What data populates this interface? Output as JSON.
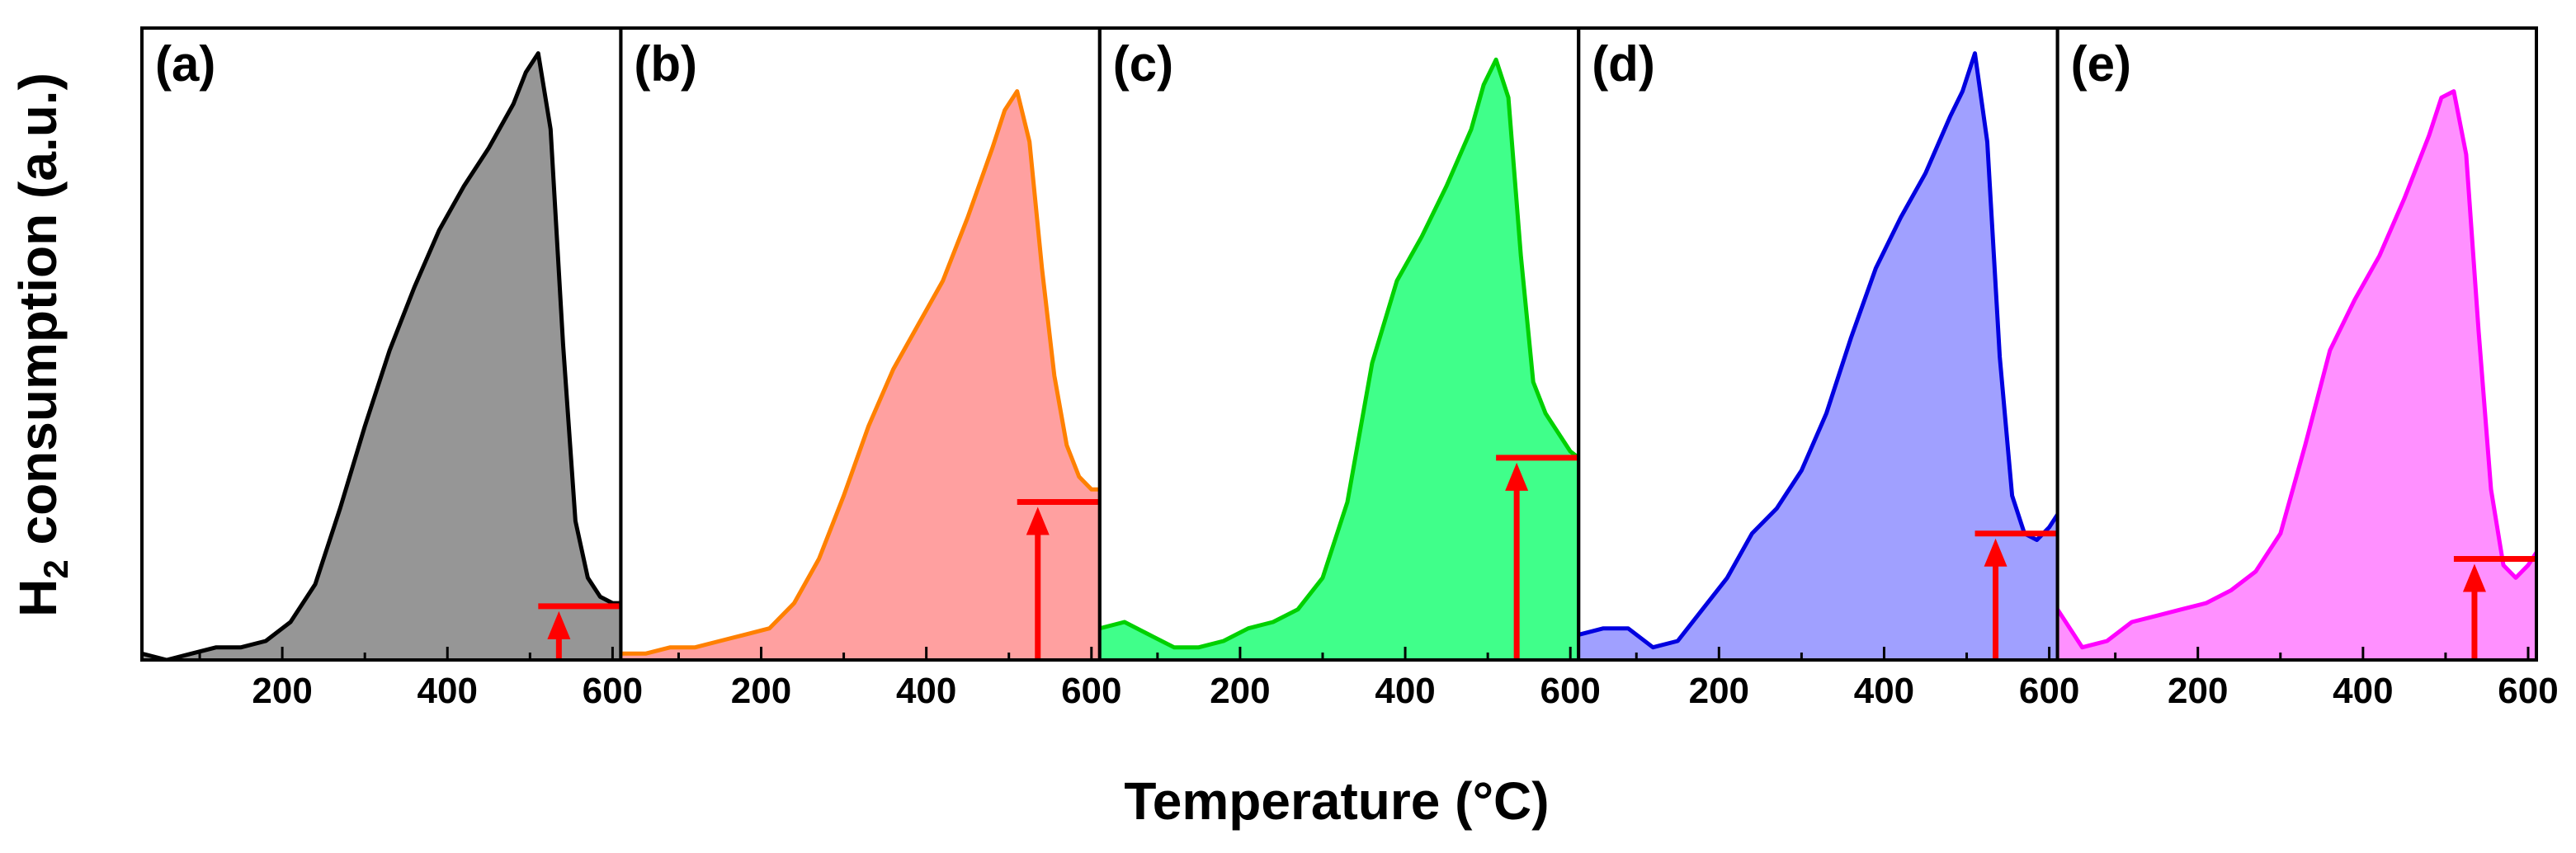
{
  "chart_data": {
    "type": "area",
    "xlabel": "Temperature (°C)",
    "ylabel_main": "H",
    "ylabel_sub": "2",
    "ylabel_rest": " consumption (a.u.)",
    "xlim": [
      30,
      610
    ],
    "ylim": [
      0,
      1
    ],
    "xticks": [
      200,
      400,
      600
    ],
    "x": [
      30,
      60,
      90,
      120,
      150,
      180,
      210,
      240,
      270,
      300,
      330,
      360,
      390,
      420,
      450,
      480,
      495,
      510,
      525,
      540,
      555,
      570,
      585,
      600,
      610
    ],
    "panels": [
      {
        "label": "(a)",
        "line_color": "#000000",
        "fill_color": "#969696",
        "values": [
          0.01,
          0.0,
          0.01,
          0.02,
          0.02,
          0.03,
          0.06,
          0.12,
          0.24,
          0.37,
          0.49,
          0.59,
          0.68,
          0.75,
          0.81,
          0.88,
          0.93,
          0.96,
          0.84,
          0.5,
          0.22,
          0.13,
          0.1,
          0.09,
          0.09
        ],
        "marker_x": 535,
        "marker_level": 0.085
      },
      {
        "label": "(b)",
        "line_color": "#FF8000",
        "fill_color": "#FFA0A0",
        "values": [
          0.01,
          0.01,
          0.02,
          0.02,
          0.03,
          0.04,
          0.05,
          0.09,
          0.16,
          0.26,
          0.37,
          0.46,
          0.53,
          0.6,
          0.7,
          0.81,
          0.87,
          0.9,
          0.82,
          0.62,
          0.45,
          0.34,
          0.29,
          0.27,
          0.27
        ],
        "marker_x": 535,
        "marker_level": 0.25
      },
      {
        "label": "(c)",
        "line_color": "#00D000",
        "fill_color": "#40FF8A",
        "values": [
          0.05,
          0.06,
          0.04,
          0.02,
          0.02,
          0.03,
          0.05,
          0.06,
          0.08,
          0.13,
          0.25,
          0.47,
          0.6,
          0.67,
          0.75,
          0.84,
          0.91,
          0.95,
          0.89,
          0.64,
          0.44,
          0.39,
          0.36,
          0.33,
          0.32
        ],
        "marker_x": 535,
        "marker_level": 0.32
      },
      {
        "label": "(d)",
        "line_color": "#0000E0",
        "fill_color": "#A0A0FF",
        "values": [
          0.04,
          0.05,
          0.05,
          0.02,
          0.03,
          0.08,
          0.13,
          0.2,
          0.24,
          0.3,
          0.39,
          0.51,
          0.62,
          0.7,
          0.77,
          0.86,
          0.9,
          0.96,
          0.82,
          0.48,
          0.26,
          0.2,
          0.19,
          0.21,
          0.23
        ],
        "marker_x": 535,
        "marker_level": 0.2
      },
      {
        "label": "(e)",
        "line_color": "#FF00FF",
        "fill_color": "#FF90FF",
        "values": [
          0.08,
          0.02,
          0.03,
          0.06,
          0.07,
          0.08,
          0.09,
          0.11,
          0.14,
          0.2,
          0.34,
          0.49,
          0.57,
          0.64,
          0.73,
          0.83,
          0.89,
          0.9,
          0.8,
          0.52,
          0.27,
          0.15,
          0.13,
          0.15,
          0.17
        ],
        "marker_x": 535,
        "marker_level": 0.16
      }
    ]
  }
}
